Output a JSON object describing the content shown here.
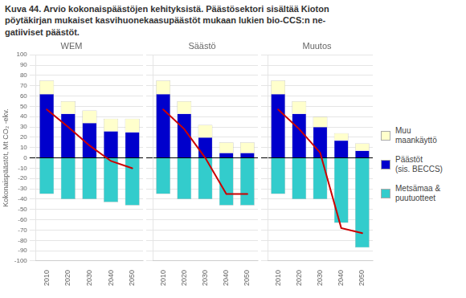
{
  "title": "Kuva 44. Arvio kokonaispäästöjen kehityksistä. Päästösektori sisältää Kioton\npöytäkirjan mukaiset kasvihuonekaasupäästöt mukaan lukien bio-CCS:n ne-\ngatiiviset päästöt.",
  "legend": "right",
  "chart_data": [
    {
      "type": "bar",
      "title": "WEM",
      "stacked": true,
      "grid": true,
      "tick_labels": true,
      "ylabel": "Kokonaispäästöt, Mt CO₂ -ekv.",
      "categories": [
        "2010",
        "2020",
        "2030",
        "2040",
        "2050"
      ],
      "ylim": [
        -100,
        100
      ],
      "yticks": [
        -100,
        -90,
        -80,
        -70,
        -60,
        -50,
        -40,
        -30,
        -20,
        -10,
        0,
        10,
        20,
        30,
        40,
        50,
        60,
        70,
        80,
        90,
        100
      ],
      "series": [
        {
          "name": "Muu\nmaankäyttö",
          "color": "#FFFFCC",
          "values": [
            13,
            12,
            12,
            12,
            13
          ]
        },
        {
          "name": "Päästöt\n(sis. BECCS)",
          "color": "#0000CC",
          "values": [
            62,
            43,
            34,
            26,
            25
          ]
        },
        {
          "name": "Metsämaa &\npuutuotteet",
          "color": "#33CCCC",
          "values": [
            -35,
            -40,
            -40,
            -43,
            -46
          ]
        },
        {
          "type": "line",
          "color": "#CC0000",
          "values": [
            47,
            30,
            12,
            -3,
            -10
          ]
        }
      ]
    },
    {
      "type": "bar",
      "title": "Säästö",
      "stacked": true,
      "grid": true,
      "tick_labels": "x",
      "categories": [
        "2010",
        "2020",
        "2030",
        "2040",
        "2050"
      ],
      "ylim": [
        -100,
        100
      ],
      "yticks": [
        -100,
        -90,
        -80,
        -70,
        -60,
        -50,
        -40,
        -30,
        -20,
        -10,
        0,
        10,
        20,
        30,
        40,
        50,
        60,
        70,
        80,
        90,
        100
      ],
      "series": [
        {
          "name": "Muu\nmaankäyttö",
          "color": "#FFFFCC",
          "values": [
            13,
            12,
            12,
            10,
            10
          ]
        },
        {
          "name": "Päästöt\n(sis. BECCS)",
          "color": "#0000CC",
          "values": [
            62,
            43,
            20,
            5,
            5
          ]
        },
        {
          "name": "Metsämaa &\npuutuotteet",
          "color": "#33CCCC",
          "values": [
            -35,
            -40,
            -40,
            -46,
            -46
          ]
        },
        {
          "type": "line",
          "color": "#CC0000",
          "values": [
            47,
            28,
            0,
            -35,
            -35
          ]
        }
      ]
    },
    {
      "type": "bar",
      "title": "Muutos",
      "stacked": true,
      "grid": true,
      "tick_labels": "x",
      "categories": [
        "2010",
        "2020",
        "2030",
        "2040",
        "2050"
      ],
      "ylim": [
        -100,
        100
      ],
      "yticks": [
        -100,
        -90,
        -80,
        -70,
        -60,
        -50,
        -40,
        -30,
        -20,
        -10,
        0,
        10,
        20,
        30,
        40,
        50,
        60,
        70,
        80,
        90,
        100
      ],
      "series": [
        {
          "name": "Muu\nmaankäyttö",
          "color": "#FFFFCC",
          "values": [
            13,
            12,
            10,
            7,
            7
          ]
        },
        {
          "name": "Päästöt\n(sis. BECCS)",
          "color": "#0000CC",
          "values": [
            62,
            43,
            30,
            17,
            7
          ]
        },
        {
          "name": "Metsämaa &\npuutuotteet",
          "color": "#33CCCC",
          "values": [
            -35,
            -40,
            -40,
            -63,
            -87
          ]
        },
        {
          "type": "line",
          "color": "#CC0000",
          "values": [
            47,
            28,
            5,
            -68,
            -73
          ]
        }
      ]
    }
  ]
}
